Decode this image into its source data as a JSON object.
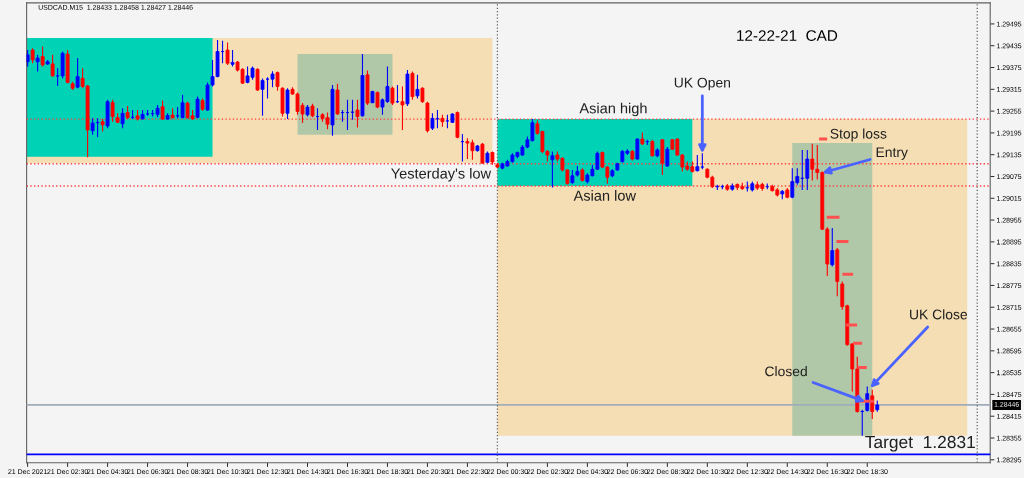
{
  "chart_data": {
    "type": "candlestick",
    "title": "USDCAD.M15  1.28433 1.28458 1.28427 1.28446",
    "xlim": [
      "2021-12-21T00:27",
      "2021-12-23T00:39"
    ],
    "ylim": [
      1.28287,
      1.29553
    ],
    "yticks": [
      1.29495,
      1.29435,
      1.29375,
      1.29315,
      1.29255,
      1.29195,
      1.29135,
      1.29075,
      1.29015,
      1.28955,
      1.28895,
      1.28835,
      1.28775,
      1.28715,
      1.28655,
      1.28595,
      1.28535,
      1.28475,
      1.28415,
      1.28355,
      1.28295
    ],
    "xticks": [
      {
        "value": "2021-12-21T00:30",
        "label": "21 Dec 2021"
      },
      {
        "value": "2021-12-21T02:30",
        "label": "21 Dec 02:30"
      },
      {
        "value": "2021-12-21T04:30",
        "label": "21 Dec 04:30"
      },
      {
        "value": "2021-12-21T06:30",
        "label": "21 Dec 06:30"
      },
      {
        "value": "2021-12-21T08:30",
        "label": "21 Dec 08:30"
      },
      {
        "value": "2021-12-21T10:30",
        "label": "21 Dec 10:30"
      },
      {
        "value": "2021-12-21T12:30",
        "label": "21 Dec 12:30"
      },
      {
        "value": "2021-12-21T14:30",
        "label": "21 Dec 14:30"
      },
      {
        "value": "2021-12-21T16:30",
        "label": "21 Dec 16:30"
      },
      {
        "value": "2021-12-21T18:30",
        "label": "21 Dec 18:30"
      },
      {
        "value": "2021-12-21T20:30",
        "label": "21 Dec 20:30"
      },
      {
        "value": "2021-12-21T22:30",
        "label": "21 Dec 22:30"
      },
      {
        "value": "2021-12-22T00:30",
        "label": "22 Dec 00:30"
      },
      {
        "value": "2021-12-22T02:30",
        "label": "22 Dec 02:30"
      },
      {
        "value": "2021-12-22T04:30",
        "label": "22 Dec 04:30"
      },
      {
        "value": "2021-12-22T06:30",
        "label": "22 Dec 06:30"
      },
      {
        "value": "2021-12-22T08:30",
        "label": "22 Dec 08:30"
      },
      {
        "value": "2021-12-22T10:30",
        "label": "22 Dec 10:30"
      },
      {
        "value": "2021-12-22T12:30",
        "label": "22 Dec 12:30"
      },
      {
        "value": "2021-12-22T14:30",
        "label": "22 Dec 14:30"
      },
      {
        "value": "2021-12-22T16:30",
        "label": "22 Dec 16:30"
      },
      {
        "value": "2021-12-22T18:30",
        "label": "22 Dec 18:30"
      }
    ],
    "series": [
      {
        "type": "line",
        "color": "#f5deb3",
        "x": [
          "2021-12-21T00:27",
          "2021-12-21T23:45"
        ],
        "values": [
          null,
          null
        ],
        "lower": [
          1.29112,
          1.29112
        ],
        "upper": [
          1.29456,
          1.29456
        ]
      },
      {
        "type": "line",
        "color": "#00d2b6",
        "x": [
          "2021-12-21T00:27",
          "2021-12-21T09:45"
        ],
        "values": [
          null,
          null
        ],
        "lower": [
          1.29129,
          1.29129
        ],
        "upper": [
          1.29456,
          1.29456
        ]
      },
      {
        "type": "line",
        "color": "#b0c8a8",
        "x": [
          "2021-12-21T14:00",
          "2021-12-21T18:45"
        ],
        "values": [
          null,
          null
        ],
        "lower": [
          1.2919,
          1.2919
        ],
        "upper": [
          1.29412,
          1.29412
        ]
      },
      {
        "type": "line",
        "color": "#f5deb3",
        "x": [
          "2021-12-22T00:00",
          "2021-12-22T23:30"
        ],
        "values": [
          null,
          null
        ],
        "lower": [
          1.28361,
          1.28361
        ],
        "upper": [
          1.29233,
          1.29233
        ]
      },
      {
        "type": "line",
        "color": "#00d2b6",
        "x": [
          "2021-12-22T00:00",
          "2021-12-22T09:45"
        ],
        "values": [
          null,
          null
        ],
        "lower": [
          1.29049,
          1.29049
        ],
        "upper": [
          1.29233,
          1.29233
        ]
      },
      {
        "type": "line",
        "color": "#b0c8a8",
        "x": [
          "2021-12-22T14:45",
          "2021-12-22T18:45"
        ],
        "values": [
          null,
          null
        ],
        "lower": [
          1.28361,
          1.28361
        ],
        "upper": [
          1.29167,
          1.29167
        ]
      },
      {
        "type": "line",
        "color": "#ff5050",
        "x": [
          "2021-12-22T16:10",
          "2021-12-22T16:25"
        ],
        "values": [
          1.29178,
          1.29178
        ]
      },
      {
        "type": "line",
        "color": "#ff5050",
        "x": [
          "2021-12-22T16:33",
          "2021-12-22T17:02"
        ],
        "values": [
          1.28963,
          1.28963
        ]
      },
      {
        "type": "line",
        "color": "#ff5050",
        "x": [
          "2021-12-22T17:02",
          "2021-12-22T17:29"
        ],
        "values": [
          1.28896,
          1.28896
        ]
      },
      {
        "type": "line",
        "color": "#ff5050",
        "x": [
          "2021-12-22T17:20",
          "2021-12-22T17:43"
        ],
        "values": [
          1.28806,
          1.28806
        ]
      },
      {
        "type": "line",
        "color": "#ff5050",
        "x": [
          "2021-12-22T17:31",
          "2021-12-22T17:55"
        ],
        "values": [
          1.28666,
          1.28666
        ]
      },
      {
        "type": "line",
        "color": "#ff5050",
        "x": [
          "2021-12-22T17:52",
          "2021-12-22T18:10"
        ],
        "values": [
          1.28616,
          1.28616
        ]
      },
      {
        "type": "line",
        "color": "#ff5050",
        "x": [
          "2021-12-22T18:06",
          "2021-12-22T18:24"
        ],
        "values": [
          1.28549,
          1.28549
        ]
      },
      {
        "type": "line",
        "color": "#ff5050",
        "x": [
          "2021-12-22T18:08",
          "2021-12-22T18:45"
        ],
        "values": [
          1.28456,
          1.28456
        ]
      },
      {
        "x": [
          "2021-12-21T00:30",
          "2021-12-21T00:45",
          "2021-12-21T01:00",
          "2021-12-21T01:15",
          "2021-12-21T01:30",
          "2021-12-21T01:45",
          "2021-12-21T02:00",
          "2021-12-21T02:15",
          "2021-12-21T02:30",
          "2021-12-21T02:45",
          "2021-12-21T03:00",
          "2021-12-21T03:15",
          "2021-12-21T03:30",
          "2021-12-21T03:45",
          "2021-12-21T04:00",
          "2021-12-21T04:15",
          "2021-12-21T04:30",
          "2021-12-21T04:45",
          "2021-12-21T05:00",
          "2021-12-21T05:15",
          "2021-12-21T05:30",
          "2021-12-21T05:45",
          "2021-12-21T06:00",
          "2021-12-21T06:15",
          "2021-12-21T06:30",
          "2021-12-21T06:45",
          "2021-12-21T07:00",
          "2021-12-21T07:15",
          "2021-12-21T07:30",
          "2021-12-21T07:45",
          "2021-12-21T08:00",
          "2021-12-21T08:15",
          "2021-12-21T08:30",
          "2021-12-21T08:45",
          "2021-12-21T09:00",
          "2021-12-21T09:15",
          "2021-12-21T09:30",
          "2021-12-21T09:45",
          "2021-12-21T10:00",
          "2021-12-21T10:15",
          "2021-12-21T10:30",
          "2021-12-21T10:45",
          "2021-12-21T11:00",
          "2021-12-21T11:15",
          "2021-12-21T11:30",
          "2021-12-21T11:45",
          "2021-12-21T12:00",
          "2021-12-21T12:15",
          "2021-12-21T12:30",
          "2021-12-21T12:45",
          "2021-12-21T13:00",
          "2021-12-21T13:15",
          "2021-12-21T13:30",
          "2021-12-21T13:45",
          "2021-12-21T14:00",
          "2021-12-21T14:15",
          "2021-12-21T14:30",
          "2021-12-21T14:45",
          "2021-12-21T15:00",
          "2021-12-21T15:15",
          "2021-12-21T15:30",
          "2021-12-21T15:45",
          "2021-12-21T16:00",
          "2021-12-21T16:15",
          "2021-12-21T16:30",
          "2021-12-21T16:45",
          "2021-12-21T17:00",
          "2021-12-21T17:15",
          "2021-12-21T17:30",
          "2021-12-21T17:45",
          "2021-12-21T18:00",
          "2021-12-21T18:15",
          "2021-12-21T18:30",
          "2021-12-21T18:45",
          "2021-12-21T19:00",
          "2021-12-21T19:15",
          "2021-12-21T19:30",
          "2021-12-21T19:45",
          "2021-12-21T20:00",
          "2021-12-21T20:15",
          "2021-12-21T20:30",
          "2021-12-21T20:45",
          "2021-12-21T21:00",
          "2021-12-21T21:15",
          "2021-12-21T21:30",
          "2021-12-21T21:45",
          "2021-12-21T22:00",
          "2021-12-21T22:15",
          "2021-12-21T22:30",
          "2021-12-21T22:45",
          "2021-12-21T23:00",
          "2021-12-21T23:15",
          "2021-12-21T23:30",
          "2021-12-21T23:45",
          "2021-12-22T00:00",
          "2021-12-22T00:15",
          "2021-12-22T00:30",
          "2021-12-22T00:45",
          "2021-12-22T01:00",
          "2021-12-22T01:15",
          "2021-12-22T01:30",
          "2021-12-22T01:45",
          "2021-12-22T02:00",
          "2021-12-22T02:15",
          "2021-12-22T02:30",
          "2021-12-22T02:45",
          "2021-12-22T03:00",
          "2021-12-22T03:15",
          "2021-12-22T03:30",
          "2021-12-22T03:45",
          "2021-12-22T04:00",
          "2021-12-22T04:15",
          "2021-12-22T04:30",
          "2021-12-22T04:45",
          "2021-12-22T05:00",
          "2021-12-22T05:15",
          "2021-12-22T05:30",
          "2021-12-22T05:45",
          "2021-12-22T06:00",
          "2021-12-22T06:15",
          "2021-12-22T06:30",
          "2021-12-22T06:45",
          "2021-12-22T07:00",
          "2021-12-22T07:15",
          "2021-12-22T07:30",
          "2021-12-22T07:45",
          "2021-12-22T08:00",
          "2021-12-22T08:15",
          "2021-12-22T08:30",
          "2021-12-22T08:45",
          "2021-12-22T09:00",
          "2021-12-22T09:15",
          "2021-12-22T09:30",
          "2021-12-22T09:45",
          "2021-12-22T10:00",
          "2021-12-22T10:15",
          "2021-12-22T10:30",
          "2021-12-22T10:45",
          "2021-12-22T11:00",
          "2021-12-22T11:15",
          "2021-12-22T11:30",
          "2021-12-22T11:45",
          "2021-12-22T12:00",
          "2021-12-22T12:15",
          "2021-12-22T12:30",
          "2021-12-22T12:45",
          "2021-12-22T13:00",
          "2021-12-22T13:15",
          "2021-12-22T13:30",
          "2021-12-22T13:45",
          "2021-12-22T14:00",
          "2021-12-22T14:15",
          "2021-12-22T14:30",
          "2021-12-22T14:45",
          "2021-12-22T15:00",
          "2021-12-22T15:15",
          "2021-12-22T15:30",
          "2021-12-22T15:45",
          "2021-12-22T16:00",
          "2021-12-22T16:15",
          "2021-12-22T16:30",
          "2021-12-22T16:45",
          "2021-12-22T17:00",
          "2021-12-22T17:15",
          "2021-12-22T17:30",
          "2021-12-22T17:45",
          "2021-12-22T18:00",
          "2021-12-22T18:15",
          "2021-12-22T18:30",
          "2021-12-22T18:45",
          "2021-12-22T19:00"
        ],
        "ohlc": [
          [
            1.29391,
            1.29423,
            1.29378,
            1.2941
          ],
          [
            1.29423,
            1.29428,
            1.29387,
            1.29396
          ],
          [
            1.29391,
            1.2941,
            1.29364,
            1.29401
          ],
          [
            1.29405,
            1.29433,
            1.29378,
            1.29382
          ],
          [
            1.29385,
            1.29396,
            1.29382,
            1.29391
          ],
          [
            1.29385,
            1.2941,
            1.2935,
            1.29352
          ],
          [
            1.29352,
            1.29373,
            1.29324,
            1.29352
          ],
          [
            1.29352,
            1.29419,
            1.29345,
            1.29414
          ],
          [
            1.29412,
            1.29423,
            1.29332,
            1.29334
          ],
          [
            1.2933,
            1.29336,
            1.29313,
            1.29318
          ],
          [
            1.29321,
            1.29401,
            1.29318,
            1.2935
          ],
          [
            1.29345,
            1.29373,
            1.29318,
            1.29323
          ],
          [
            1.29324,
            1.29327,
            1.29128,
            1.29203
          ],
          [
            1.29201,
            1.29235,
            1.2919,
            1.29222
          ],
          [
            1.29223,
            1.29235,
            1.29183,
            1.29224
          ],
          [
            1.29226,
            1.29233,
            1.29199,
            1.29217
          ],
          [
            1.29214,
            1.29286,
            1.29208,
            1.29281
          ],
          [
            1.29279,
            1.29286,
            1.29226,
            1.2924
          ],
          [
            1.29237,
            1.29249,
            1.29222,
            1.29224
          ],
          [
            1.2922,
            1.29263,
            1.29208,
            1.29249
          ],
          [
            1.29251,
            1.29269,
            1.29233,
            1.29237
          ],
          [
            1.29238,
            1.29258,
            1.29233,
            1.29238
          ],
          [
            1.29242,
            1.29258,
            1.29229,
            1.29233
          ],
          [
            1.29234,
            1.29258,
            1.29231,
            1.29246
          ],
          [
            1.29247,
            1.29258,
            1.29242,
            1.29247
          ],
          [
            1.29248,
            1.29258,
            1.2924,
            1.29248
          ],
          [
            1.29246,
            1.29272,
            1.29238,
            1.29263
          ],
          [
            1.29267,
            1.29284,
            1.29231,
            1.29233
          ],
          [
            1.29233,
            1.29249,
            1.29231,
            1.29243
          ],
          [
            1.29244,
            1.29263,
            1.29234,
            1.29237
          ],
          [
            1.29242,
            1.29266,
            1.29235,
            1.29242
          ],
          [
            1.29237,
            1.293,
            1.29235,
            1.29278
          ],
          [
            1.29277,
            1.29281,
            1.29234,
            1.29237
          ],
          [
            1.29242,
            1.29258,
            1.29231,
            1.29234
          ],
          [
            1.29238,
            1.29295,
            1.29235,
            1.29288
          ],
          [
            1.29284,
            1.2929,
            1.29256,
            1.2926
          ],
          [
            1.29258,
            1.29334,
            1.29256,
            1.29327
          ],
          [
            1.29327,
            1.29396,
            1.29323,
            1.2935
          ],
          [
            1.2935,
            1.29451,
            1.29348,
            1.29419
          ],
          [
            1.29419,
            1.29449,
            1.29387,
            1.29419
          ],
          [
            1.29423,
            1.29444,
            1.29382,
            1.29387
          ],
          [
            1.29384,
            1.29423,
            1.29378,
            1.29389
          ],
          [
            1.2939,
            1.29393,
            1.29364,
            1.29368
          ],
          [
            1.2937,
            1.29373,
            1.2933,
            1.29332
          ],
          [
            1.29334,
            1.29378,
            1.29332,
            1.29352
          ],
          [
            1.29348,
            1.29378,
            1.29341,
            1.29373
          ],
          [
            1.2937,
            1.29373,
            1.29311,
            1.29313
          ],
          [
            1.29315,
            1.29345,
            1.29242,
            1.29339
          ],
          [
            1.29343,
            1.29348,
            1.2929,
            1.29343
          ],
          [
            1.29343,
            1.29365,
            1.29321,
            1.29357
          ],
          [
            1.29361,
            1.29364,
            1.29311,
            1.29323
          ],
          [
            1.29318,
            1.29321,
            1.2924,
            1.29249
          ],
          [
            1.29249,
            1.29318,
            1.29233,
            1.29313
          ],
          [
            1.29315,
            1.29321,
            1.293,
            1.29302
          ],
          [
            1.29302,
            1.29306,
            1.29245,
            1.29254
          ],
          [
            1.29271,
            1.29277,
            1.29222,
            1.29247
          ],
          [
            1.29245,
            1.29272,
            1.2924,
            1.29266
          ],
          [
            1.29269,
            1.29275,
            1.29238,
            1.29242
          ],
          [
            1.2924,
            1.29263,
            1.29203,
            1.2924
          ],
          [
            1.29245,
            1.29249,
            1.29226,
            1.29235
          ],
          [
            1.29237,
            1.29251,
            1.29205,
            1.29219
          ],
          [
            1.29217,
            1.29327,
            1.29187,
            1.29315
          ],
          [
            1.29313,
            1.2933,
            1.29245,
            1.29247
          ],
          [
            1.29251,
            1.29258,
            1.29226,
            1.29251
          ],
          [
            1.29251,
            1.29286,
            1.29203,
            1.29251
          ],
          [
            1.29252,
            1.29286,
            1.29231,
            1.29252
          ],
          [
            1.29258,
            1.29286,
            1.2921,
            1.2924
          ],
          [
            1.29242,
            1.29412,
            1.2924,
            1.29353
          ],
          [
            1.29355,
            1.29367,
            1.29272,
            1.29277
          ],
          [
            1.29278,
            1.29311,
            1.29277,
            1.29309
          ],
          [
            1.29306,
            1.29309,
            1.29263,
            1.29266
          ],
          [
            1.29266,
            1.2929,
            1.29245,
            1.29286
          ],
          [
            1.29281,
            1.29378,
            1.29278,
            1.29323
          ],
          [
            1.29318,
            1.29323,
            1.29272,
            1.29277
          ],
          [
            1.29281,
            1.29327,
            1.29277,
            1.29281
          ],
          [
            1.29281,
            1.29323,
            1.29203,
            1.29272
          ],
          [
            1.29275,
            1.29368,
            1.29269,
            1.29357
          ],
          [
            1.29359,
            1.29364,
            1.29286,
            1.29295
          ],
          [
            1.29297,
            1.29355,
            1.2929,
            1.29315
          ],
          [
            1.29318,
            1.29321,
            1.29278,
            1.29281
          ],
          [
            1.29277,
            1.29281,
            1.29196,
            1.29201
          ],
          [
            1.29208,
            1.29249,
            1.29203,
            1.29235
          ],
          [
            1.29234,
            1.29258,
            1.29208,
            1.29234
          ],
          [
            1.29235,
            1.29245,
            1.29212,
            1.29226
          ],
          [
            1.29228,
            1.29245,
            1.29208,
            1.29228
          ],
          [
            1.29224,
            1.29249,
            1.29222,
            1.29247
          ],
          [
            1.29251,
            1.29254,
            1.2918,
            1.29183
          ],
          [
            1.29171,
            1.29192,
            1.29116,
            1.29171
          ],
          [
            1.29171,
            1.2918,
            1.29123,
            1.29167
          ],
          [
            1.29168,
            1.29176,
            1.29121,
            1.29146
          ],
          [
            1.29146,
            1.29162,
            1.29144,
            1.29159
          ],
          [
            1.29164,
            1.29167,
            1.2911,
            1.29112
          ],
          [
            1.29114,
            1.29144,
            1.29112,
            1.29139
          ],
          [
            1.29141,
            1.29144,
            1.29107,
            1.29115
          ],
          [
            1.29107,
            1.29112,
            1.29098,
            1.29101
          ],
          [
            1.29098,
            1.29113,
            1.29095,
            1.2911
          ],
          [
            1.29104,
            1.29121,
            1.29102,
            1.29116
          ],
          [
            1.29116,
            1.29139,
            1.29113,
            1.29134
          ],
          [
            1.2913,
            1.29144,
            1.29125,
            1.29141
          ],
          [
            1.29134,
            1.29162,
            1.29132,
            1.29156
          ],
          [
            1.29156,
            1.29185,
            1.29153,
            1.29176
          ],
          [
            1.29174,
            1.29233,
            1.29171,
            1.29223
          ],
          [
            1.2922,
            1.29229,
            1.2919,
            1.29194
          ],
          [
            1.29199,
            1.29201,
            1.29139,
            1.29144
          ],
          [
            1.29144,
            1.29148,
            1.29116,
            1.29134
          ],
          [
            1.29121,
            1.29144,
            1.29045,
            1.29132
          ],
          [
            1.29134,
            1.29144,
            1.29116,
            1.29123
          ],
          [
            1.29125,
            1.29128,
            1.29089,
            1.29093
          ],
          [
            1.29093,
            1.29095,
            1.29052,
            1.29056
          ],
          [
            1.29058,
            1.29093,
            1.29055,
            1.29077
          ],
          [
            1.29079,
            1.29104,
            1.29075,
            1.29089
          ],
          [
            1.29093,
            1.29098,
            1.29061,
            1.29064
          ],
          [
            1.29061,
            1.29084,
            1.29056,
            1.29079
          ],
          [
            1.29077,
            1.29107,
            1.29075,
            1.29095
          ],
          [
            1.29095,
            1.29144,
            1.29093,
            1.29139
          ],
          [
            1.29141,
            1.29144,
            1.29098,
            1.29101
          ],
          [
            1.29101,
            1.29104,
            1.29055,
            1.29073
          ],
          [
            1.29077,
            1.29095,
            1.29073,
            1.29091
          ],
          [
            1.29093,
            1.29113,
            1.29091,
            1.2911
          ],
          [
            1.29116,
            1.29148,
            1.29113,
            1.29144
          ],
          [
            1.29139,
            1.2915,
            1.29134,
            1.29145
          ],
          [
            1.29144,
            1.29148,
            1.29119,
            1.29123
          ],
          [
            1.29123,
            1.2918,
            1.29121,
            1.29178
          ],
          [
            1.29178,
            1.29196,
            1.29162,
            1.29165
          ],
          [
            1.29171,
            1.29176,
            1.29162,
            1.29171
          ],
          [
            1.29171,
            1.29176,
            1.2913,
            1.29132
          ],
          [
            1.29132,
            1.29153,
            1.29128,
            1.29148
          ],
          [
            1.29176,
            1.29178,
            1.29079,
            1.29112
          ],
          [
            1.29104,
            1.29156,
            1.29101,
            1.2915
          ],
          [
            1.29176,
            1.29178,
            1.29148,
            1.2915
          ],
          [
            1.29178,
            1.2918,
            1.29132,
            1.29134
          ],
          [
            1.29134,
            1.29137,
            1.29089,
            1.29101
          ],
          [
            1.29104,
            1.29116,
            1.29091,
            1.29095
          ],
          [
            1.29102,
            1.29116,
            1.29086,
            1.29089
          ],
          [
            1.29091,
            1.29134,
            1.29089,
            1.29102
          ],
          [
            1.29101,
            1.29139,
            1.29095,
            1.29101
          ],
          [
            1.29095,
            1.29098,
            1.2907,
            1.29073
          ],
          [
            1.29073,
            1.29077,
            1.29043,
            1.29047
          ],
          [
            1.29047,
            1.29052,
            1.29038,
            1.29047
          ],
          [
            1.29047,
            1.29052,
            1.2904,
            1.29047
          ],
          [
            1.29049,
            1.29054,
            1.29036,
            1.2904
          ],
          [
            1.2904,
            1.29056,
            1.29036,
            1.29049
          ],
          [
            1.29053,
            1.29056,
            1.29038,
            1.29045
          ],
          [
            1.29047,
            1.29058,
            1.29038,
            1.29042
          ],
          [
            1.29044,
            1.29061,
            1.29034,
            1.29044
          ],
          [
            1.29038,
            1.29061,
            1.29034,
            1.29055
          ],
          [
            1.29052,
            1.29061,
            1.29038,
            1.29043
          ],
          [
            1.29053,
            1.29058,
            1.29036,
            1.29042
          ],
          [
            1.29047,
            1.29056,
            1.2904,
            1.29047
          ],
          [
            1.29047,
            1.29052,
            1.29034,
            1.29036
          ],
          [
            1.29038,
            1.29043,
            1.2902,
            1.29024
          ],
          [
            1.29027,
            1.29038,
            1.29012,
            1.29034
          ],
          [
            1.29038,
            1.29043,
            1.29015,
            1.29018
          ],
          [
            1.29018,
            1.29098,
            1.29015,
            1.29061
          ],
          [
            1.29058,
            1.29098,
            1.29052,
            1.29075
          ],
          [
            1.2907,
            1.29148,
            1.29038,
            1.2907
          ],
          [
            1.2907,
            1.29148,
            1.29038,
            1.29123
          ],
          [
            1.29123,
            1.29165,
            1.29064,
            1.29095
          ],
          [
            1.29095,
            1.29162,
            1.29067,
            1.29086
          ],
          [
            1.29086,
            1.29089,
            1.28928,
            1.2893
          ],
          [
            1.2893,
            1.28935,
            1.28801,
            1.28834
          ],
          [
            1.28832,
            1.28933,
            1.28827,
            1.28871
          ],
          [
            1.28873,
            1.28878,
            1.28745,
            1.28786
          ],
          [
            1.28779,
            1.28786,
            1.28708,
            1.28717
          ],
          [
            1.28719,
            1.28722,
            1.28609,
            1.28612
          ],
          [
            1.28614,
            1.28616,
            1.28483,
            1.28545
          ],
          [
            1.28545,
            1.28579,
            1.28425,
            1.28428
          ],
          [
            1.28428,
            1.28433,
            1.28361,
            1.28428
          ],
          [
            1.28431,
            1.28497,
            1.28428,
            1.28477
          ],
          [
            1.28471,
            1.28488,
            1.28407,
            1.28428
          ],
          [
            1.28433,
            1.28458,
            1.28427,
            1.28446
          ]
        ],
        "colors": [
          "#0000ff",
          "#ff0000",
          "#0000ff",
          "#ff0000",
          "#0000ff",
          "#ff0000",
          "#0000ff",
          "#0000ff",
          "#ff0000",
          "#ff0000",
          "#0000ff",
          "#ff0000",
          "#ff0000",
          "#0000ff",
          "#0000ff",
          "#ff0000",
          "#0000ff",
          "#ff0000",
          "#ff0000",
          "#0000ff",
          "#ff0000",
          "#0000ff",
          "#ff0000",
          "#0000ff",
          "#0000ff",
          "#0000ff",
          "#0000ff",
          "#ff0000",
          "#0000ff",
          "#ff0000",
          "#0000ff",
          "#0000ff",
          "#ff0000",
          "#ff0000",
          "#0000ff",
          "#ff0000",
          "#0000ff",
          "#0000ff",
          "#0000ff",
          "#0000ff",
          "#ff0000",
          "#0000ff",
          "#ff0000",
          "#ff0000",
          "#0000ff",
          "#0000ff",
          "#ff0000",
          "#0000ff",
          "#0000ff",
          "#0000ff",
          "#ff0000",
          "#ff0000",
          "#0000ff",
          "#ff0000",
          "#ff0000",
          "#ff0000",
          "#0000ff",
          "#ff0000",
          "#0000ff",
          "#ff0000",
          "#ff0000",
          "#0000ff",
          "#ff0000",
          "#0000ff",
          "#0000ff",
          "#0000ff",
          "#ff0000",
          "#0000ff",
          "#ff0000",
          "#0000ff",
          "#ff0000",
          "#0000ff",
          "#0000ff",
          "#ff0000",
          "#0000ff",
          "#ff0000",
          "#0000ff",
          "#ff0000",
          "#0000ff",
          "#ff0000",
          "#ff0000",
          "#0000ff",
          "#0000ff",
          "#ff0000",
          "#0000ff",
          "#0000ff",
          "#ff0000",
          "#0000ff",
          "#ff0000",
          "#ff0000",
          "#0000ff",
          "#ff0000",
          "#0000ff",
          "#ff0000",
          "#ff0000",
          "#0000ff",
          "#0000ff",
          "#0000ff",
          "#0000ff",
          "#0000ff",
          "#0000ff",
          "#0000ff",
          "#ff0000",
          "#ff0000",
          "#ff0000",
          "#0000ff",
          "#ff0000",
          "#ff0000",
          "#ff0000",
          "#0000ff",
          "#0000ff",
          "#ff0000",
          "#0000ff",
          "#0000ff",
          "#0000ff",
          "#ff0000",
          "#ff0000",
          "#0000ff",
          "#0000ff",
          "#0000ff",
          "#0000ff",
          "#ff0000",
          "#0000ff",
          "#ff0000",
          "#0000ff",
          "#ff0000",
          "#0000ff",
          "#ff0000",
          "#0000ff",
          "#ff0000",
          "#ff0000",
          "#ff0000",
          "#ff0000",
          "#ff0000",
          "#0000ff",
          "#0000ff",
          "#ff0000",
          "#ff0000",
          "#0000ff",
          "#0000ff",
          "#ff0000",
          "#0000ff",
          "#ff0000",
          "#ff0000",
          "#0000ff",
          "#0000ff",
          "#ff0000",
          "#ff0000",
          "#0000ff",
          "#ff0000",
          "#ff0000",
          "#0000ff",
          "#ff0000",
          "#0000ff",
          "#0000ff",
          "#0000ff",
          "#0000ff",
          "#ff0000",
          "#ff0000",
          "#ff0000",
          "#ff0000",
          "#0000ff",
          "#ff0000",
          "#ff0000",
          "#ff0000",
          "#ff0000",
          "#ff0000",
          "#0000ff",
          "#0000ff",
          "#ff0000",
          "#0000ff"
        ]
      }
    ],
    "ref_lines": [
      {
        "axis": "y",
        "value": 1.29233,
        "label": "Asian high",
        "color": "#ff4040",
        "line_style": "dotted"
      },
      {
        "axis": "y",
        "value": 1.2911,
        "label": "Yesterday's low",
        "color": "#ff4040",
        "line_style": "dotted"
      },
      {
        "axis": "y",
        "value": 1.29049,
        "label": "Asian low",
        "color": "#ff4040",
        "line_style": "dotted"
      },
      {
        "axis": "y",
        "value": 1.2831,
        "label": "Target  1.2831",
        "color": "#0000ff",
        "line_style": "solid"
      },
      {
        "axis": "y",
        "value": 1.28446,
        "label": "1.28446",
        "color": "#a0acb8",
        "line_style": "solid"
      },
      {
        "axis": "x",
        "value": "2021-12-22T00:00",
        "color": "#606060",
        "line_style": "dotted"
      },
      {
        "axis": "x",
        "value": "2021-12-23T00:00",
        "color": "#606060",
        "line_style": "dotted"
      }
    ],
    "annotations": [
      "12-22-21  CAD",
      {
        "text": "UK Open",
        "x": "2021-12-22T10:15",
        "y": 1.29139
      },
      {
        "text": "Stop loss",
        "x": "2021-12-22T16:25",
        "y": 1.29178
      },
      {
        "text": "Entry",
        "x": "2021-12-22T16:15",
        "y": 1.29085
      },
      {
        "text": "UK Close",
        "x": "2021-12-22T18:39",
        "y": 1.28493
      },
      {
        "text": "Closed",
        "x": "2021-12-22T18:24",
        "y": 1.28455
      }
    ]
  }
}
